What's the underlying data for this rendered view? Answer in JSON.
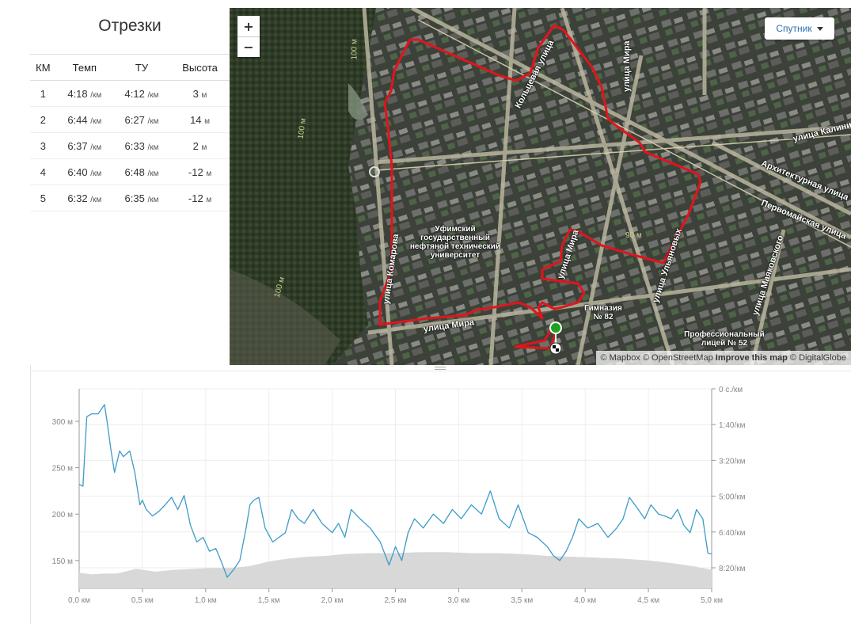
{
  "splits": {
    "title": "Отрезки",
    "columns": [
      "КМ",
      "Темп",
      "ТУ",
      "Высота"
    ],
    "rows": [
      {
        "km": "1",
        "pace": "4:18",
        "gap": "4:12",
        "elev": "3"
      },
      {
        "km": "2",
        "pace": "6:44",
        "gap": "6:27",
        "elev": "14"
      },
      {
        "km": "3",
        "pace": "6:37",
        "gap": "6:33",
        "elev": "2"
      },
      {
        "km": "4",
        "pace": "6:40",
        "gap": "6:48",
        "elev": "-12"
      },
      {
        "km": "5",
        "pace": "6:32",
        "gap": "6:35",
        "elev": "-12"
      }
    ],
    "pace_unit": "/км",
    "elev_unit": "м"
  },
  "map": {
    "zoom_in": "+",
    "zoom_out": "−",
    "layer_button": "Спутник",
    "attribution": {
      "mapbox": "© Mapbox",
      "osm": "© OpenStreetMap",
      "improve": "Improve this map",
      "digitalglobe": "© DigitalGlobe"
    },
    "streets": [
      "Кольцевая улица",
      "улица Мира",
      "улица Калинина",
      "Архитектурная улица",
      "Первомайская улица",
      "улица Ульяновых",
      "улица Маяковского",
      "улица Комарова",
      "улица Мира",
      "улица Мира"
    ],
    "pois": [
      "Уфимский государственный нефтяной технический университет",
      "Гимназия № 82",
      "Профессиональный лицей № 52"
    ],
    "contours": [
      "100 м",
      "100 м",
      "100 м",
      "90 м"
    ],
    "route_color": "#e3141b",
    "start_color": "#1fa21f"
  },
  "chart_data": {
    "type": "area",
    "x_unit": "км",
    "xlim": [
      0,
      5.0
    ],
    "x_ticks": [
      "0,0 км",
      "0,5 км",
      "1,0 км",
      "1,5 км",
      "2,0 км",
      "2,5 км",
      "3,0 км",
      "3,5 км",
      "4,0 км",
      "4,5 км",
      "5,0 км"
    ],
    "y_left_ticks": [
      "300 м",
      "250 м",
      "200 м",
      "150 м"
    ],
    "y_right_ticks": [
      "0 с./км",
      "1:40/км",
      "3:20/км",
      "5:00/км",
      "6:40/км",
      "8:20/км"
    ],
    "series": [
      {
        "name": "Темп",
        "axis": "left",
        "x": [
          0.0,
          0.03,
          0.06,
          0.1,
          0.15,
          0.2,
          0.22,
          0.25,
          0.28,
          0.32,
          0.35,
          0.4,
          0.44,
          0.48,
          0.5,
          0.53,
          0.58,
          0.63,
          0.68,
          0.73,
          0.78,
          0.83,
          0.88,
          0.93,
          0.98,
          1.03,
          1.08,
          1.12,
          1.17,
          1.22,
          1.27,
          1.32,
          1.35,
          1.38,
          1.42,
          1.47,
          1.53,
          1.58,
          1.63,
          1.68,
          1.73,
          1.78,
          1.85,
          1.92,
          2.0,
          2.05,
          2.1,
          2.15,
          2.22,
          2.3,
          2.38,
          2.45,
          2.5,
          2.55,
          2.6,
          2.65,
          2.72,
          2.8,
          2.88,
          2.95,
          3.02,
          3.1,
          3.18,
          3.25,
          3.32,
          3.4,
          3.47,
          3.55,
          3.62,
          3.7,
          3.75,
          3.8,
          3.85,
          3.9,
          3.95,
          4.02,
          4.1,
          4.18,
          4.25,
          4.3,
          4.35,
          4.42,
          4.47,
          4.52,
          4.58,
          4.63,
          4.68,
          4.73,
          4.78,
          4.83,
          4.88,
          4.93,
          4.97,
          5.0
        ],
        "y": [
          232,
          230,
          305,
          308,
          308,
          318,
          300,
          270,
          245,
          268,
          262,
          268,
          245,
          210,
          215,
          205,
          198,
          203,
          210,
          218,
          205,
          220,
          188,
          170,
          175,
          160,
          163,
          150,
          132,
          140,
          150,
          185,
          210,
          215,
          218,
          185,
          170,
          175,
          180,
          205,
          195,
          190,
          205,
          190,
          180,
          190,
          175,
          205,
          195,
          185,
          170,
          145,
          165,
          150,
          180,
          195,
          185,
          200,
          190,
          205,
          195,
          210,
          200,
          225,
          195,
          185,
          210,
          180,
          175,
          165,
          155,
          150,
          160,
          175,
          195,
          185,
          190,
          175,
          185,
          195,
          218,
          205,
          195,
          210,
          200,
          198,
          195,
          205,
          188,
          180,
          205,
          195,
          158,
          157
        ]
      },
      {
        "name": "Высота",
        "axis": "left",
        "x": [
          0.0,
          0.1,
          0.2,
          0.3,
          0.45,
          0.6,
          0.75,
          0.9,
          1.05,
          1.2,
          1.35,
          1.5,
          1.65,
          1.8,
          1.95,
          2.1,
          2.3,
          2.5,
          2.7,
          2.9,
          3.1,
          3.3,
          3.5,
          3.7,
          3.9,
          4.1,
          4.3,
          4.5,
          4.7,
          4.85,
          5.0
        ],
        "y": [
          137,
          135,
          136,
          136,
          141,
          138,
          140,
          141,
          142,
          142,
          144,
          149,
          152,
          154,
          155,
          157,
          158,
          158,
          159,
          159,
          158,
          158,
          157,
          155,
          154,
          153,
          152,
          150,
          147,
          144,
          140
        ]
      }
    ],
    "grid": true
  }
}
